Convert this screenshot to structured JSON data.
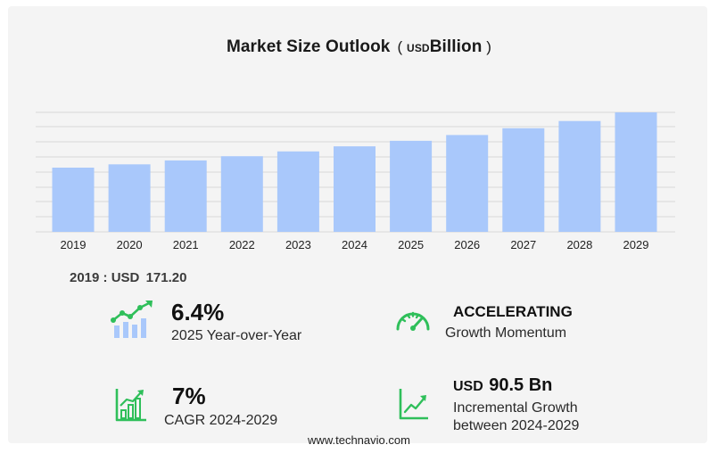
{
  "header": {
    "title": "Market Size Outlook",
    "unit_open": "(",
    "unit_small": "USD",
    "unit_big": "Billion",
    "unit_close": ")"
  },
  "chart_data": {
    "type": "bar",
    "title": "Market Size Outlook",
    "categories": [
      "2019",
      "2020",
      "2021",
      "2022",
      "2023",
      "2024",
      "2025",
      "2026",
      "2027",
      "2028",
      "2029"
    ],
    "values": [
      171.2,
      180.0,
      190.5,
      201.5,
      214.5,
      228.0,
      242.6,
      258.1,
      276.2,
      295.5,
      318.5
    ],
    "ylim": [
      0,
      318.5
    ],
    "grid": true,
    "bar_color": "#a9c8fb",
    "grid_color": "#d7d7d7"
  },
  "base_year": {
    "year": "2019",
    "separator": ":",
    "currency": "USD",
    "value": "171.20"
  },
  "stats": {
    "yoy": {
      "value": "6.4%",
      "label": "2025 Year-over-Year"
    },
    "momentum": {
      "value": "ACCELERATING",
      "label": "Growth Momentum"
    },
    "cagr": {
      "value": "7%",
      "label": "CAGR 2024-2029"
    },
    "incremental": {
      "currency": "USD",
      "value": "90.5 Bn",
      "label_line1": "Incremental Growth",
      "label_line2": "between 2024-2029"
    }
  },
  "footer": {
    "url": "www.technavio.com"
  },
  "colors": {
    "icon_green": "#2fbf5a",
    "icon_blue": "#a9c8fb",
    "text": "#111111"
  }
}
